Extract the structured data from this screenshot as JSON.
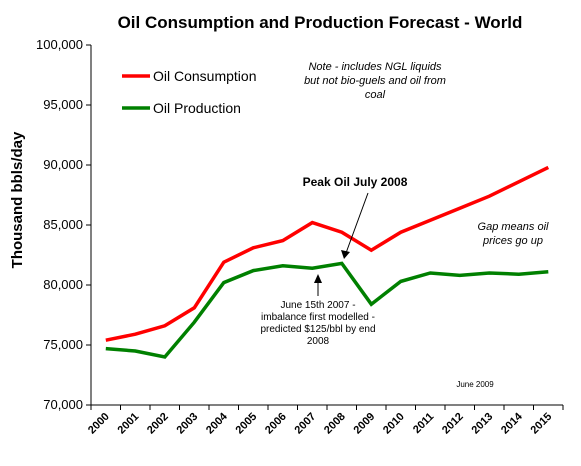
{
  "chart_data": {
    "type": "line",
    "title": "Oil Consumption and Production Forecast - World",
    "ylabel": "Thousand bbls/day",
    "xlabel": "",
    "ylim": [
      70000,
      100000
    ],
    "yticks": [
      "70,000",
      "75,000",
      "80,000",
      "85,000",
      "90,000",
      "95,000",
      "100,000"
    ],
    "ytick_values": [
      70000,
      75000,
      80000,
      85000,
      90000,
      95000,
      100000
    ],
    "categories": [
      "2000",
      "2001",
      "2002",
      "2003",
      "2004",
      "2005",
      "2006",
      "2007",
      "2008",
      "2009",
      "2010",
      "2011",
      "2012",
      "2013",
      "2014",
      "2015"
    ],
    "series": [
      {
        "name": "Oil Consumption",
        "color": "#ff0000",
        "values": [
          75400,
          75900,
          76600,
          78100,
          81900,
          83100,
          83700,
          85200,
          84400,
          82900,
          84400,
          85400,
          86400,
          87400,
          88600,
          89800
        ]
      },
      {
        "name": "Oil Production",
        "color": "#008000",
        "values": [
          74700,
          74500,
          74000,
          76900,
          80200,
          81200,
          81600,
          81400,
          81800,
          78400,
          80300,
          81000,
          80800,
          81000,
          80900,
          81100
        ]
      }
    ],
    "legend_position": "top-left",
    "grid": false,
    "annotations": {
      "note_lines": [
        "Note - includes NGL liquids",
        "but not bio-guels and  oil from",
        "coal"
      ],
      "peak": "Peak Oil July 2008",
      "gap_lines": [
        "Gap means oil",
        "prices go up"
      ],
      "imbalance_lines": [
        "June 15th 2007 -",
        "imbalance first modelled -",
        "predicted $125/bbl by end",
        "2008"
      ],
      "date_stamp": "June 2009"
    }
  }
}
